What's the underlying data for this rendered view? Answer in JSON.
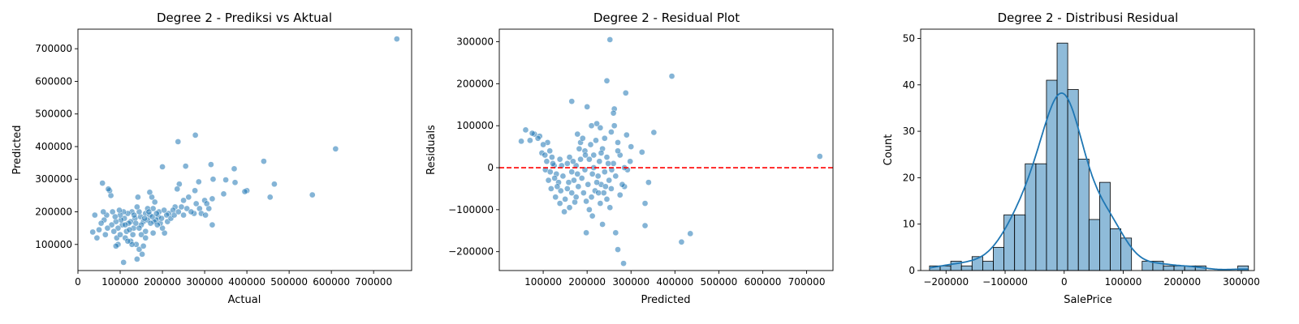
{
  "chart_data": [
    {
      "type": "scatter",
      "title": "Degree 2 - Prediksi vs Aktual",
      "xlabel": "Actual",
      "ylabel": "Predicted",
      "xlim": [
        0,
        790000
      ],
      "ylim": [
        20000,
        760000
      ],
      "xticks": [
        0,
        100000,
        200000,
        300000,
        400000,
        500000,
        600000,
        700000
      ],
      "yticks": [
        100000,
        200000,
        300000,
        400000,
        500000,
        600000,
        700000
      ],
      "color": "#1f77b4",
      "grid": false,
      "points": [
        [
          755000,
          730000
        ],
        [
          610000,
          393000
        ],
        [
          555000,
          252000
        ],
        [
          465000,
          285000
        ],
        [
          455000,
          245000
        ],
        [
          440000,
          355000
        ],
        [
          400000,
          265000
        ],
        [
          395000,
          262000
        ],
        [
          370000,
          332000
        ],
        [
          372000,
          290000
        ],
        [
          350000,
          298000
        ],
        [
          345000,
          255000
        ],
        [
          315000,
          345000
        ],
        [
          320000,
          300000
        ],
        [
          318000,
          240000
        ],
        [
          310000,
          210000
        ],
        [
          318000,
          160000
        ],
        [
          278000,
          435000
        ],
        [
          237000,
          415000
        ],
        [
          255000,
          340000
        ],
        [
          200000,
          338000
        ],
        [
          286000,
          292000
        ],
        [
          277000,
          265000
        ],
        [
          240000,
          285000
        ],
        [
          235000,
          270000
        ],
        [
          250000,
          235000
        ],
        [
          262000,
          245000
        ],
        [
          300000,
          235000
        ],
        [
          305000,
          225000
        ],
        [
          288000,
          210000
        ],
        [
          280000,
          225000
        ],
        [
          275000,
          195000
        ],
        [
          258000,
          210000
        ],
        [
          250000,
          190000
        ],
        [
          230000,
          215000
        ],
        [
          215000,
          195000
        ],
        [
          210000,
          190000
        ],
        [
          225000,
          205000
        ],
        [
          205000,
          135000
        ],
        [
          200000,
          150000
        ],
        [
          195000,
          165000
        ],
        [
          190000,
          185000
        ],
        [
          185000,
          175000
        ],
        [
          180000,
          170000
        ],
        [
          178000,
          210000
        ],
        [
          182000,
          230000
        ],
        [
          175000,
          245000
        ],
        [
          170000,
          260000
        ],
        [
          160000,
          195000
        ],
        [
          155000,
          170000
        ],
        [
          150000,
          160000
        ],
        [
          148000,
          185000
        ],
        [
          145000,
          200000
        ],
        [
          140000,
          215000
        ],
        [
          142000,
          245000
        ],
        [
          135000,
          180000
        ],
        [
          132000,
          150000
        ],
        [
          130000,
          130000
        ],
        [
          128000,
          200000
        ],
        [
          125000,
          170000
        ],
        [
          120000,
          165000
        ],
        [
          118000,
          195000
        ],
        [
          115000,
          140000
        ],
        [
          112000,
          120000
        ],
        [
          110000,
          180000
        ],
        [
          108000,
          200000
        ],
        [
          105000,
          160000
        ],
        [
          102000,
          175000
        ],
        [
          100000,
          190000
        ],
        [
          98000,
          205000
        ],
        [
          95000,
          150000
        ],
        [
          92000,
          120000
        ],
        [
          90000,
          170000
        ],
        [
          88000,
          185000
        ],
        [
          85000,
          140000
        ],
        [
          82000,
          200000
        ],
        [
          80000,
          160000
        ],
        [
          78000,
          250000
        ],
        [
          75000,
          265000
        ],
        [
          72000,
          270000
        ],
        [
          70000,
          150000
        ],
        [
          68000,
          190000
        ],
        [
          65000,
          130000
        ],
        [
          62000,
          175000
        ],
        [
          60000,
          200000
        ],
        [
          58000,
          288000
        ],
        [
          55000,
          165000
        ],
        [
          50000,
          145000
        ],
        [
          45000,
          120000
        ],
        [
          40000,
          190000
        ],
        [
          35000,
          138000
        ],
        [
          108000,
          45000
        ],
        [
          140000,
          55000
        ],
        [
          152000,
          70000
        ],
        [
          145000,
          85000
        ],
        [
          138000,
          100000
        ],
        [
          125000,
          110000
        ],
        [
          155000,
          95000
        ],
        [
          165000,
          210000
        ],
        [
          170000,
          190000
        ],
        [
          188000,
          160000
        ],
        [
          192000,
          200000
        ],
        [
          198000,
          180000
        ],
        [
          160000,
          140000
        ],
        [
          150000,
          130000
        ],
        [
          128000,
          100000
        ],
        [
          118000,
          110000
        ],
        [
          165000,
          175000
        ],
        [
          172000,
          165000
        ],
        [
          176000,
          185000
        ],
        [
          145000,
          150000
        ],
        [
          137000,
          165000
        ],
        [
          122000,
          145000
        ],
        [
          112000,
          160000
        ],
        [
          168000,
          200000
        ],
        [
          133000,
          190000
        ],
        [
          158000,
          180000
        ],
        [
          186000,
          195000
        ],
        [
          204000,
          205000
        ],
        [
          212000,
          170000
        ],
        [
          220000,
          180000
        ],
        [
          228000,
          190000
        ],
        [
          238000,
          200000
        ],
        [
          245000,
          215000
        ],
        [
          268000,
          200000
        ],
        [
          292000,
          195000
        ],
        [
          302000,
          190000
        ],
        [
          100000,
          130000
        ],
        [
          95000,
          100000
        ],
        [
          90000,
          95000
        ],
        [
          160000,
          120000
        ],
        [
          178000,
          135000
        ]
      ]
    },
    {
      "type": "scatter",
      "title": "Degree 2 - Residual Plot",
      "xlabel": "Predicted",
      "ylabel": "Residuals",
      "xlim": [
        0,
        760000
      ],
      "ylim": [
        -245000,
        330000
      ],
      "xticks": [
        100000,
        200000,
        300000,
        400000,
        500000,
        600000,
        700000
      ],
      "yticks": [
        -200000,
        -100000,
        0,
        100000,
        200000,
        300000
      ],
      "hline": 0,
      "hline_color": "#ff0000",
      "color": "#1f77b4",
      "grid": false,
      "points": [
        [
          730000,
          27000
        ],
        [
          393000,
          218000
        ],
        [
          435000,
          -157000
        ],
        [
          415000,
          -177000
        ],
        [
          352000,
          84000
        ],
        [
          340000,
          -35000
        ],
        [
          332000,
          -85000
        ],
        [
          332000,
          -138000
        ],
        [
          325000,
          37000
        ],
        [
          300000,
          50000
        ],
        [
          298000,
          15000
        ],
        [
          292000,
          -5000
        ],
        [
          288000,
          178000
        ],
        [
          290000,
          78000
        ],
        [
          285000,
          -45000
        ],
        [
          283000,
          -228000
        ],
        [
          270000,
          -195000
        ],
        [
          265000,
          -155000
        ],
        [
          262000,
          140000
        ],
        [
          260000,
          130000
        ],
        [
          252000,
          305000
        ],
        [
          245000,
          207000
        ],
        [
          255000,
          85000
        ],
        [
          262000,
          100000
        ],
        [
          270000,
          60000
        ],
        [
          275000,
          30000
        ],
        [
          240000,
          70000
        ],
        [
          230000,
          95000
        ],
        [
          222000,
          105000
        ],
        [
          210000,
          100000
        ],
        [
          200000,
          145000
        ],
        [
          165000,
          158000
        ],
        [
          178000,
          80000
        ],
        [
          185000,
          60000
        ],
        [
          195000,
          40000
        ],
        [
          205000,
          20000
        ],
        [
          215000,
          0
        ],
        [
          225000,
          -20000
        ],
        [
          232000,
          -40000
        ],
        [
          238000,
          -60000
        ],
        [
          245000,
          -75000
        ],
        [
          252000,
          -95000
        ],
        [
          235000,
          -135000
        ],
        [
          212000,
          -115000
        ],
        [
          198000,
          -155000
        ],
        [
          172000,
          -82000
        ],
        [
          160000,
          -95000
        ],
        [
          150000,
          -75000
        ],
        [
          140000,
          -55000
        ],
        [
          135000,
          -35000
        ],
        [
          130000,
          -15000
        ],
        [
          125000,
          5000
        ],
        [
          120000,
          25000
        ],
        [
          115000,
          40000
        ],
        [
          110000,
          60000
        ],
        [
          100000,
          55000
        ],
        [
          97000,
          35000
        ],
        [
          92000,
          75000
        ],
        [
          88000,
          70000
        ],
        [
          80000,
          80000
        ],
        [
          75000,
          82000
        ],
        [
          70000,
          65000
        ],
        [
          60000,
          90000
        ],
        [
          50000,
          63000
        ],
        [
          105000,
          -5000
        ],
        [
          112000,
          -30000
        ],
        [
          118000,
          -50000
        ],
        [
          128000,
          -70000
        ],
        [
          138000,
          -85000
        ],
        [
          148000,
          -105000
        ],
        [
          155000,
          10000
        ],
        [
          160000,
          25000
        ],
        [
          165000,
          -10000
        ],
        [
          170000,
          -30000
        ],
        [
          175000,
          5000
        ],
        [
          180000,
          -45000
        ],
        [
          185000,
          20000
        ],
        [
          188000,
          -25000
        ],
        [
          192000,
          -60000
        ],
        [
          195000,
          -5000
        ],
        [
          198000,
          -80000
        ],
        [
          202000,
          -40000
        ],
        [
          205000,
          -100000
        ],
        [
          210000,
          -70000
        ],
        [
          215000,
          30000
        ],
        [
          218000,
          -55000
        ],
        [
          220000,
          65000
        ],
        [
          222000,
          -35000
        ],
        [
          228000,
          15000
        ],
        [
          230000,
          -85000
        ],
        [
          235000,
          45000
        ],
        [
          240000,
          -10000
        ],
        [
          245000,
          25000
        ],
        [
          250000,
          -30000
        ],
        [
          255000,
          -50000
        ],
        [
          260000,
          10000
        ],
        [
          265000,
          -20000
        ],
        [
          270000,
          40000
        ],
        [
          275000,
          -65000
        ],
        [
          280000,
          -40000
        ],
        [
          285000,
          0
        ],
        [
          178000,
          -15000
        ],
        [
          168000,
          15000
        ],
        [
          158000,
          -35000
        ],
        [
          145000,
          -20000
        ],
        [
          142000,
          5000
        ],
        [
          138000,
          20000
        ],
        [
          132000,
          -45000
        ],
        [
          126000,
          -25000
        ],
        [
          122000,
          10000
        ],
        [
          116000,
          -10000
        ],
        [
          108000,
          15000
        ],
        [
          104000,
          30000
        ],
        [
          182000,
          45000
        ],
        [
          190000,
          70000
        ],
        [
          196000,
          30000
        ],
        [
          208000,
          55000
        ],
        [
          212000,
          -15000
        ],
        [
          226000,
          -60000
        ],
        [
          232000,
          35000
        ],
        [
          242000,
          -45000
        ],
        [
          248000,
          10000
        ],
        [
          256000,
          -5000
        ],
        [
          175000,
          -70000
        ],
        [
          165000,
          -60000
        ],
        [
          155000,
          -50000
        ]
      ]
    },
    {
      "type": "histogram",
      "title": "Degree 2 - Distribusi Residual",
      "xlabel": "SalePrice",
      "ylabel": "Count",
      "xlim": [
        -243000,
        322000
      ],
      "ylim": [
        0,
        52
      ],
      "xticks": [
        -200000,
        -100000,
        0,
        100000,
        200000,
        300000
      ],
      "xtick_labels": [
        "−200000",
        "−100000",
        "0",
        "100000",
        "200000",
        "300000"
      ],
      "yticks": [
        0,
        10,
        20,
        30,
        40,
        50
      ],
      "bin_start": -228000,
      "bin_width": 18000,
      "counts": [
        1,
        1,
        2,
        1,
        3,
        2,
        5,
        12,
        12,
        23,
        23,
        41,
        49,
        39,
        24,
        11,
        19,
        9,
        7,
        0,
        2,
        2,
        1,
        1,
        1,
        1,
        0,
        0,
        0,
        1
      ],
      "kde": true,
      "color": "#1f77b4"
    }
  ]
}
